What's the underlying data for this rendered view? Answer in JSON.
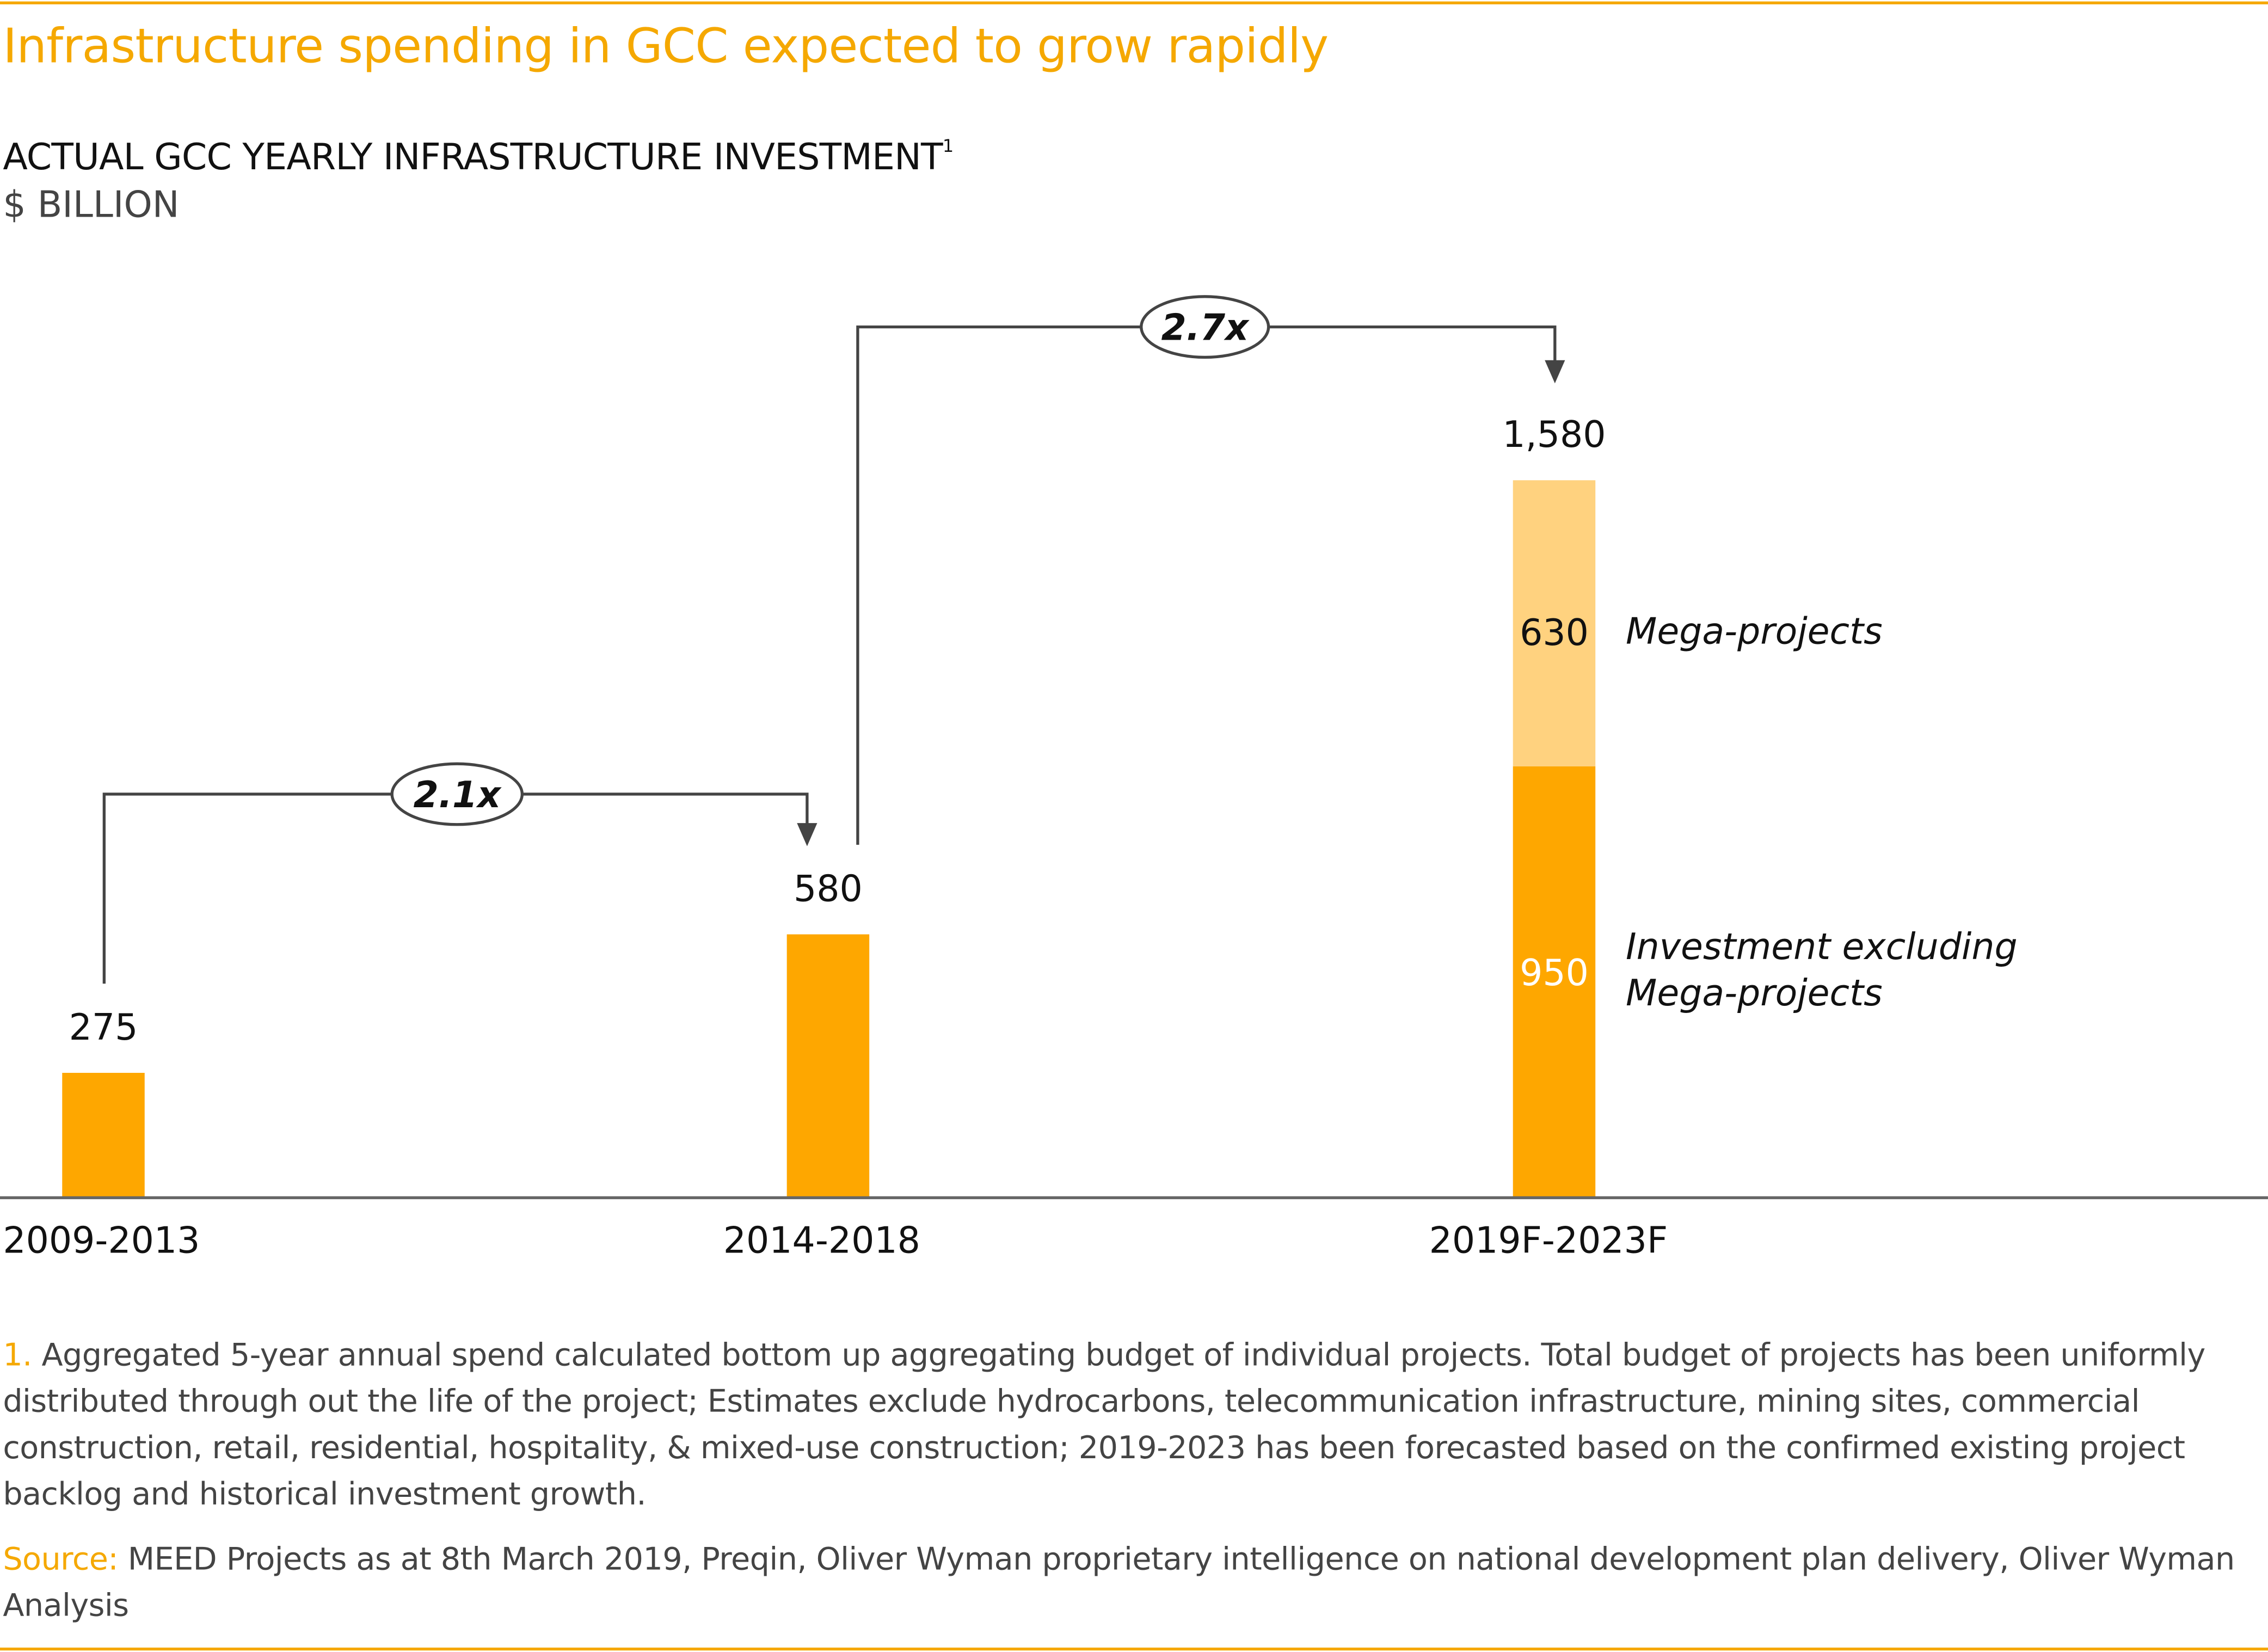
{
  "title": "Infrastructure spending in GCC expected to grow rapidly",
  "subtitle": "ACTUAL GCC YEARLY INFRASTRUCTURE INVESTMENT",
  "subtitle_footnote_ref": "1",
  "unit": "$ BILLION",
  "colors": {
    "accent": "#f5a800",
    "bar_primary": "#fea700",
    "bar_light": "#ffd27f",
    "connector": "#444444",
    "axis": "#666666"
  },
  "chart_data": {
    "type": "bar",
    "stacked": true,
    "title": "ACTUAL GCC YEARLY INFRASTRUCTURE INVESTMENT",
    "ylabel": "$ BILLION",
    "xlabel": "",
    "categories": [
      "2009-2013",
      "2014-2018",
      "2019F-2023F"
    ],
    "series": [
      {
        "name": "Investment excluding Mega-projects",
        "values": [
          275,
          580,
          950
        ],
        "color": "#fea700"
      },
      {
        "name": "Mega-projects",
        "values": [
          0,
          0,
          630
        ],
        "color": "#ffd27f"
      }
    ],
    "totals": [
      "275",
      "580",
      "1,580"
    ],
    "segment_labels": {
      "2019F-2023F": {
        "Investment excluding Mega-projects": "950",
        "Mega-projects": "630"
      }
    },
    "annotations": [
      {
        "from": "2009-2013",
        "to": "2014-2018",
        "label": "2.1x"
      },
      {
        "from": "2014-2018",
        "to": "2019F-2023F",
        "label": "2.7x"
      }
    ],
    "series_labels": {
      "mega": "Mega-projects",
      "excl_line1": "Investment excluding",
      "excl_line2": "Mega-projects"
    },
    "ylim": [
      0,
      1580
    ],
    "grid": false,
    "legend": "inline-right"
  },
  "footnote": {
    "marker": "1.",
    "text": "Aggregated 5-year annual spend calculated bottom up aggregating budget of individual projects. Total budget of projects has been uniformly distributed through out the life of the project; Estimates exclude hydrocarbons, telecommunication infrastructure, mining sites, commercial construction, retail, residential, hospitality, & mixed-use construction; 2019-2023 has been forecasted based on the confirmed existing project backlog and historical investment growth."
  },
  "source": {
    "marker": "Source:",
    "text": "MEED Projects as at 8th March 2019, Preqin, Oliver Wyman proprietary intelligence on national development plan delivery, Oliver Wyman Analysis"
  }
}
